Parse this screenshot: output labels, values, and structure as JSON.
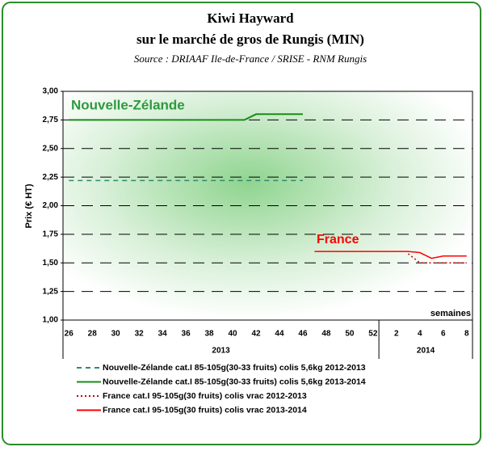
{
  "chart_data": {
    "type": "line",
    "title": "Kiwi Hayward",
    "subtitle": "sur le marché de gros de Rungis (MIN)",
    "source": "Source : DRIAAF Ile-de-France / SRISE - RNM Rungis",
    "y_label": "Prix (€ HT)",
    "x_label": "semaines",
    "annotations": [
      {
        "text": "Nouvelle-Zélande",
        "color": "#2e9a3e"
      },
      {
        "text": "France",
        "color": "#ff0000"
      }
    ],
    "categories": [
      "26",
      null,
      "28",
      null,
      "30",
      null,
      "32",
      null,
      "34",
      null,
      "36",
      null,
      "38",
      null,
      "40",
      null,
      "42",
      null,
      "44",
      null,
      "46",
      null,
      "48",
      null,
      "50",
      null,
      "52",
      null,
      "2",
      null,
      "4",
      null,
      "6",
      null,
      "8"
    ],
    "groups": [
      {
        "label": "2013",
        "span": 27
      },
      {
        "label": "2014",
        "span": 8
      }
    ],
    "ylim": [
      1,
      3
    ],
    "yticks": [
      {
        "value": 1,
        "label": "1,00"
      },
      {
        "value": 1.25,
        "label": "1,25"
      },
      {
        "value": 1.5,
        "label": "1,50"
      },
      {
        "value": 1.75,
        "label": "1,75"
      },
      {
        "value": 2,
        "label": "2,00"
      },
      {
        "value": 2.25,
        "label": "2,25"
      },
      {
        "value": 2.5,
        "label": "2,50"
      },
      {
        "value": 2.75,
        "label": "2,75"
      },
      {
        "value": 3,
        "label": "3,00"
      }
    ],
    "grid": true,
    "series": [
      {
        "name": "Nouvelle-Zélande cat.I 85-105g(30-33 fruits) colis 5,6kg 2012-2013",
        "color": "#2e8b6e",
        "dash": "dashed",
        "values": [
          2.22,
          2.22,
          2.22,
          2.22,
          2.22,
          2.22,
          2.22,
          2.22,
          2.22,
          2.22,
          2.22,
          2.22,
          2.22,
          2.22,
          2.22,
          2.22,
          2.22,
          2.22,
          2.22,
          2.22,
          2.22,
          null,
          null,
          null,
          null,
          null,
          null,
          null,
          null,
          null,
          null,
          null,
          null,
          null,
          null
        ]
      },
      {
        "name": "Nouvelle-Zélande cat.I 85-105g(30-33 fruits) colis 5,6kg 2013-2014",
        "color": "#1a8c1a",
        "dash": "solid",
        "values": [
          2.75,
          2.75,
          2.75,
          2.75,
          2.75,
          2.75,
          2.75,
          2.75,
          2.75,
          2.75,
          2.75,
          2.75,
          2.75,
          2.75,
          2.75,
          2.75,
          2.8,
          2.8,
          2.8,
          2.8,
          2.8,
          null,
          null,
          null,
          null,
          null,
          null,
          null,
          null,
          null,
          null,
          null,
          null,
          null,
          null
        ]
      },
      {
        "name": "France cat.I  95-105g(30 fruits) colis vrac 2012-2013",
        "color": "#cc0000",
        "dash": "dotted",
        "values": [
          null,
          null,
          null,
          null,
          null,
          null,
          null,
          null,
          null,
          null,
          null,
          null,
          null,
          null,
          null,
          null,
          null,
          null,
          null,
          null,
          null,
          null,
          null,
          null,
          null,
          null,
          null,
          null,
          null,
          1.58,
          1.5,
          1.5,
          1.5,
          1.5,
          1.5
        ]
      },
      {
        "name": "France cat.I  95-105g(30 fruits) colis vrac 2013-2014",
        "color": "#ff0000",
        "dash": "solid",
        "values": [
          null,
          null,
          null,
          null,
          null,
          null,
          null,
          null,
          null,
          null,
          null,
          null,
          null,
          null,
          null,
          null,
          null,
          null,
          null,
          null,
          null,
          1.6,
          1.6,
          1.6,
          1.6,
          1.6,
          1.6,
          1.6,
          1.6,
          1.6,
          1.59,
          1.54,
          1.56,
          1.56,
          1.56
        ]
      }
    ]
  }
}
